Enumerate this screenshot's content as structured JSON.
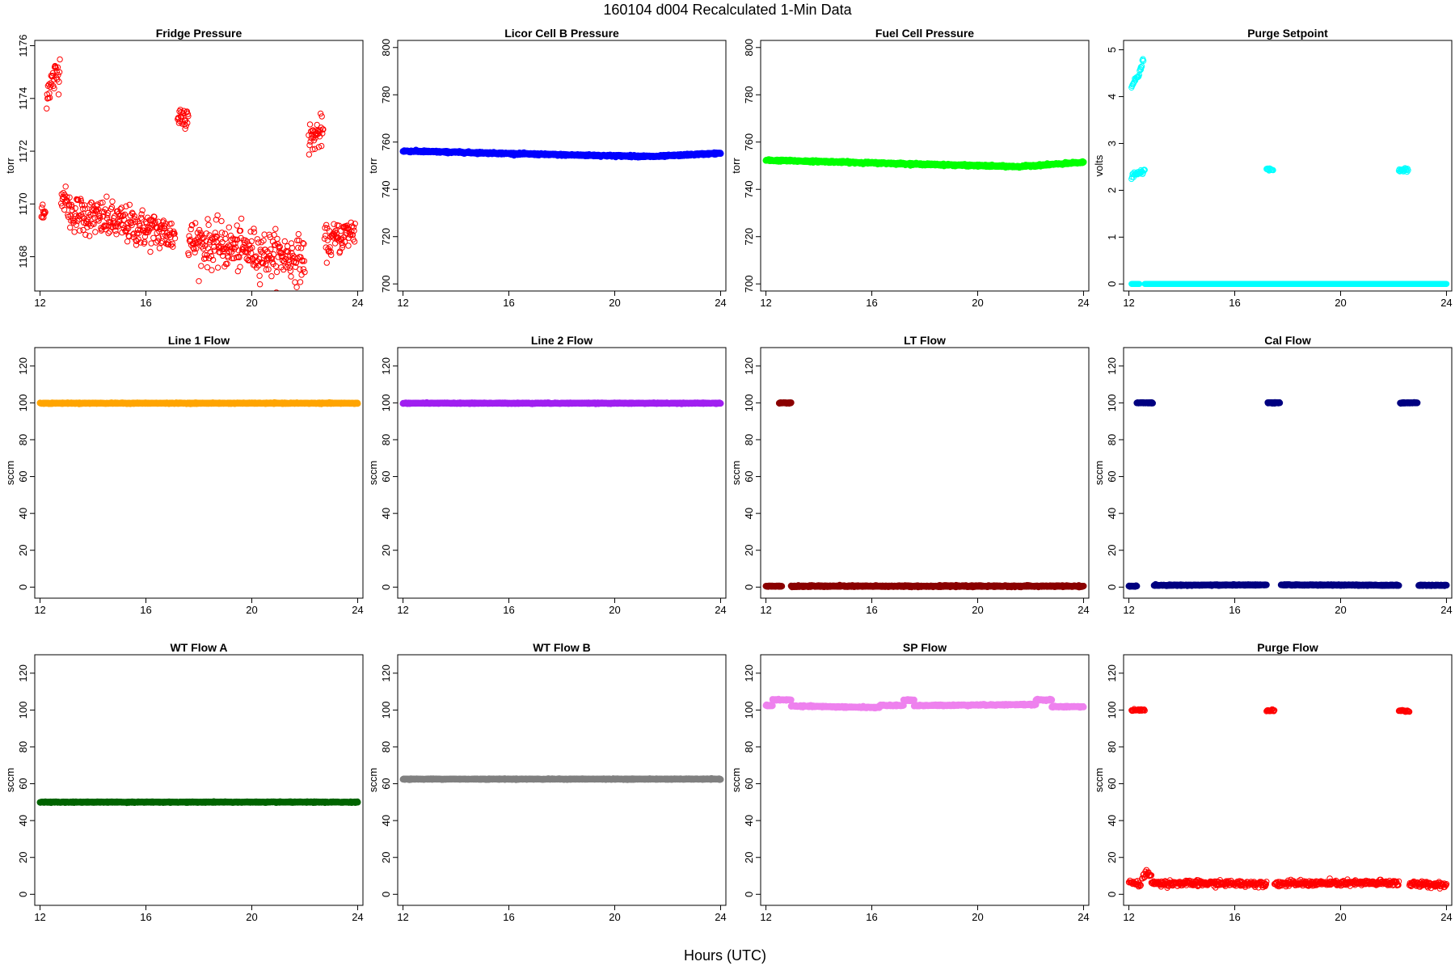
{
  "figure": {
    "title": "160104   d004   Recalculated 1-Min Data",
    "xlabel": "Hours (UTC)"
  },
  "chart_data": [
    {
      "type": "scatter",
      "title": "Fridge Pressure",
      "ylabel": "torr",
      "xlabel": "",
      "xlim": [
        11.8,
        24.2
      ],
      "ylim": [
        1166.7,
        1176.2
      ],
      "xticks": [
        12,
        16,
        20,
        24
      ],
      "yticks": [
        1168,
        1170,
        1172,
        1174,
        1176
      ],
      "marker": "open-circle",
      "color": "#ff0000",
      "segments": [
        {
          "x": [
            12.05,
            12.2
          ],
          "y": [
            1169.6,
            1169.6
          ],
          "noise": 0.45
        },
        {
          "x": [
            12.25,
            12.75
          ],
          "y": [
            1174.3,
            1175.1
          ],
          "noise": 0.55
        },
        {
          "x": [
            12.8,
            13.1
          ],
          "y": [
            1170.5,
            1169.8
          ],
          "noise": 0.45
        },
        {
          "x": [
            13.1,
            17.1
          ],
          "y": [
            1169.7,
            1168.8
          ],
          "noise": 0.6
        },
        {
          "x": [
            17.2,
            17.6
          ],
          "y": [
            1173.3,
            1173.4
          ],
          "noise": 0.4
        },
        {
          "x": [
            17.6,
            22.0
          ],
          "y": [
            1168.6,
            1167.9
          ],
          "noise": 0.7
        },
        {
          "x": [
            22.15,
            22.7
          ],
          "y": [
            1172.4,
            1172.8
          ],
          "noise": 0.5
        },
        {
          "x": [
            22.75,
            23.9
          ],
          "y": [
            1168.5,
            1169.0
          ],
          "noise": 0.5
        }
      ]
    },
    {
      "type": "scatter",
      "title": "Licor Cell B Pressure",
      "ylabel": "torr",
      "xlabel": "",
      "xlim": [
        11.8,
        24.2
      ],
      "ylim": [
        697,
        803
      ],
      "xticks": [
        12,
        16,
        20,
        24
      ],
      "yticks": [
        700,
        720,
        740,
        760,
        780,
        800
      ],
      "marker": "filled-dense",
      "color": "#0000ff",
      "segments": [
        {
          "x": [
            12.0,
            14.0
          ],
          "y": [
            756.2,
            755.7
          ],
          "noise": 0.3
        },
        {
          "x": [
            14.0,
            18.0
          ],
          "y": [
            755.7,
            754.6
          ],
          "noise": 0.3
        },
        {
          "x": [
            18.0,
            21.5
          ],
          "y": [
            754.6,
            753.9
          ],
          "noise": 0.3
        },
        {
          "x": [
            21.5,
            24.0
          ],
          "y": [
            753.9,
            755.3
          ],
          "noise": 0.3
        }
      ]
    },
    {
      "type": "scatter",
      "title": "Fuel Cell Pressure",
      "ylabel": "torr",
      "xlabel": "",
      "xlim": [
        11.8,
        24.2
      ],
      "ylim": [
        697,
        803
      ],
      "xticks": [
        12,
        16,
        20,
        24
      ],
      "yticks": [
        700,
        720,
        740,
        760,
        780,
        800
      ],
      "marker": "filled-dense",
      "color": "#00ff00",
      "segments": [
        {
          "x": [
            12.0,
            14.0
          ],
          "y": [
            752.3,
            751.8
          ],
          "noise": 0.3
        },
        {
          "x": [
            14.0,
            18.0
          ],
          "y": [
            751.8,
            750.6
          ],
          "noise": 0.3
        },
        {
          "x": [
            18.0,
            21.5
          ],
          "y": [
            750.6,
            749.6
          ],
          "noise": 0.3
        },
        {
          "x": [
            21.5,
            24.0
          ],
          "y": [
            749.6,
            751.4
          ],
          "noise": 0.3
        }
      ]
    },
    {
      "type": "scatter",
      "title": "Purge Setpoint",
      "ylabel": "volts",
      "xlabel": "",
      "xlim": [
        11.8,
        24.2
      ],
      "ylim": [
        -0.15,
        5.2
      ],
      "xticks": [
        12,
        16,
        20,
        24
      ],
      "yticks": [
        0,
        1,
        2,
        3,
        4,
        5
      ],
      "marker": "open-circle",
      "color": "#00ffff",
      "segments": [
        {
          "x": [
            12.1,
            12.4
          ],
          "y": [
            0,
            0
          ],
          "noise": 0,
          "sparse": true
        },
        {
          "x": [
            12.1,
            12.45
          ],
          "y": [
            4.2,
            4.55
          ],
          "noise": 0.05,
          "sparse": true
        },
        {
          "x": [
            12.45,
            12.55
          ],
          "y": [
            4.6,
            4.8
          ],
          "noise": 0.05,
          "sparse": true
        },
        {
          "x": [
            12.1,
            12.6
          ],
          "y": [
            2.3,
            2.42
          ],
          "noise": 0.04,
          "sparse": true
        },
        {
          "x": [
            12.6,
            24.0
          ],
          "y": [
            0,
            0
          ],
          "noise": 0
        },
        {
          "x": [
            17.2,
            17.45
          ],
          "y": [
            2.46,
            2.44
          ],
          "noise": 0.03,
          "sparse": true
        },
        {
          "x": [
            22.2,
            22.55
          ],
          "y": [
            2.42,
            2.44
          ],
          "noise": 0.04,
          "sparse": true
        }
      ]
    },
    {
      "type": "scatter",
      "title": "Line 1 Flow",
      "ylabel": "sccm",
      "xlabel": "",
      "xlim": [
        11.8,
        24.2
      ],
      "ylim": [
        -6,
        130
      ],
      "xticks": [
        12,
        16,
        20,
        24
      ],
      "yticks": [
        0,
        20,
        40,
        60,
        80,
        100,
        120
      ],
      "marker": "filled-dense",
      "color": "#ffa500",
      "segments": [
        {
          "x": [
            12.0,
            24.0
          ],
          "y": [
            99.8,
            99.8
          ],
          "noise": 0.2
        }
      ]
    },
    {
      "type": "scatter",
      "title": "Line 2 Flow",
      "ylabel": "sccm",
      "xlabel": "",
      "xlim": [
        11.8,
        24.2
      ],
      "ylim": [
        -6,
        130
      ],
      "xticks": [
        12,
        16,
        20,
        24
      ],
      "yticks": [
        0,
        20,
        40,
        60,
        80,
        100,
        120
      ],
      "marker": "filled-dense",
      "color": "#a020f0",
      "segments": [
        {
          "x": [
            12.0,
            24.0
          ],
          "y": [
            99.8,
            99.8
          ],
          "noise": 0.2
        }
      ]
    },
    {
      "type": "scatter",
      "title": "LT Flow",
      "ylabel": "sccm",
      "xlabel": "",
      "xlim": [
        11.8,
        24.2
      ],
      "ylim": [
        -6,
        130
      ],
      "xticks": [
        12,
        16,
        20,
        24
      ],
      "yticks": [
        0,
        20,
        40,
        60,
        80,
        100,
        120
      ],
      "marker": "filled-dense",
      "color": "#8b0000",
      "segments": [
        {
          "x": [
            12.0,
            12.6
          ],
          "y": [
            0.5,
            0.5
          ],
          "noise": 0.2
        },
        {
          "x": [
            12.5,
            12.95
          ],
          "y": [
            100,
            100
          ],
          "noise": 0.2
        },
        {
          "x": [
            12.95,
            24.0
          ],
          "y": [
            0.5,
            0.5
          ],
          "noise": 0.3
        }
      ]
    },
    {
      "type": "scatter",
      "title": "Cal Flow",
      "ylabel": "sccm",
      "xlabel": "",
      "xlim": [
        11.8,
        24.2
      ],
      "ylim": [
        -6,
        130
      ],
      "xticks": [
        12,
        16,
        20,
        24
      ],
      "yticks": [
        0,
        20,
        40,
        60,
        80,
        100,
        120
      ],
      "marker": "filled-dense",
      "color": "#000080",
      "segments": [
        {
          "x": [
            12.0,
            12.3
          ],
          "y": [
            0.5,
            0.5
          ],
          "noise": 0.2
        },
        {
          "x": [
            12.3,
            12.9
          ],
          "y": [
            100,
            100
          ],
          "noise": 0.2
        },
        {
          "x": [
            12.95,
            17.2
          ],
          "y": [
            1.0,
            1.2
          ],
          "noise": 0.2
        },
        {
          "x": [
            17.25,
            17.7
          ],
          "y": [
            100,
            100
          ],
          "noise": 0.2
        },
        {
          "x": [
            17.75,
            22.2
          ],
          "y": [
            1.2,
            1.0
          ],
          "noise": 0.2
        },
        {
          "x": [
            22.25,
            22.9
          ],
          "y": [
            100,
            100
          ],
          "noise": 0.2
        },
        {
          "x": [
            22.95,
            24.0
          ],
          "y": [
            1.0,
            1.0
          ],
          "noise": 0.2
        }
      ]
    },
    {
      "type": "scatter",
      "title": "WT Flow A",
      "ylabel": "sccm",
      "xlabel": "",
      "xlim": [
        11.8,
        24.2
      ],
      "ylim": [
        -6,
        130
      ],
      "xticks": [
        12,
        16,
        20,
        24
      ],
      "yticks": [
        0,
        20,
        40,
        60,
        80,
        100,
        120
      ],
      "marker": "filled-dense",
      "color": "#006400",
      "segments": [
        {
          "x": [
            12.0,
            24.0
          ],
          "y": [
            50,
            50
          ],
          "noise": 0.2
        }
      ]
    },
    {
      "type": "scatter",
      "title": "WT Flow B",
      "ylabel": "sccm",
      "xlabel": "",
      "xlim": [
        11.8,
        24.2
      ],
      "ylim": [
        -6,
        130
      ],
      "xticks": [
        12,
        16,
        20,
        24
      ],
      "yticks": [
        0,
        20,
        40,
        60,
        80,
        100,
        120
      ],
      "marker": "filled-dense",
      "color": "#808080",
      "segments": [
        {
          "x": [
            12.0,
            24.0
          ],
          "y": [
            62.5,
            62.5
          ],
          "noise": 0.2
        }
      ]
    },
    {
      "type": "scatter",
      "title": "SP Flow",
      "ylabel": "sccm",
      "xlabel": "",
      "xlim": [
        11.8,
        24.2
      ],
      "ylim": [
        -6,
        130
      ],
      "xticks": [
        12,
        16,
        20,
        24
      ],
      "yticks": [
        0,
        20,
        40,
        60,
        80,
        100,
        120
      ],
      "marker": "filled-dense",
      "color": "#ee82ee",
      "segments": [
        {
          "x": [
            12.0,
            12.25
          ],
          "y": [
            102.5,
            102.5
          ],
          "noise": 0.3
        },
        {
          "x": [
            12.25,
            12.95
          ],
          "y": [
            105.5,
            105.5
          ],
          "noise": 0.3
        },
        {
          "x": [
            12.95,
            16.3
          ],
          "y": [
            102.2,
            101.3
          ],
          "noise": 0.3
        },
        {
          "x": [
            16.3,
            17.2
          ],
          "y": [
            102.5,
            102.5
          ],
          "noise": 0.3
        },
        {
          "x": [
            17.2,
            17.6
          ],
          "y": [
            105.3,
            105.3
          ],
          "noise": 0.3
        },
        {
          "x": [
            17.6,
            22.2
          ],
          "y": [
            102.4,
            103.0
          ],
          "noise": 0.3
        },
        {
          "x": [
            22.2,
            22.8
          ],
          "y": [
            105.5,
            105.5
          ],
          "noise": 0.3
        },
        {
          "x": [
            22.8,
            24.0
          ],
          "y": [
            101.8,
            101.8
          ],
          "noise": 0.3
        }
      ]
    },
    {
      "type": "scatter",
      "title": "Purge Flow",
      "ylabel": "sccm",
      "xlabel": "",
      "xlim": [
        11.8,
        24.2
      ],
      "ylim": [
        -6,
        130
      ],
      "xticks": [
        12,
        16,
        20,
        24
      ],
      "yticks": [
        0,
        20,
        40,
        60,
        80,
        100,
        120
      ],
      "marker": "open-circle",
      "color": "#ff0000",
      "segments": [
        {
          "x": [
            12.0,
            12.45
          ],
          "y": [
            6.5,
            5.0
          ],
          "noise": 1.2,
          "sparse": true
        },
        {
          "x": [
            12.1,
            12.6
          ],
          "y": [
            100,
            100
          ],
          "noise": 0.4,
          "sparse": true
        },
        {
          "x": [
            12.5,
            12.85
          ],
          "y": [
            9.5,
            12.0
          ],
          "noise": 2.0,
          "sparse": true
        },
        {
          "x": [
            12.85,
            17.2
          ],
          "y": [
            6.0,
            5.8
          ],
          "noise": 1.3
        },
        {
          "x": [
            17.2,
            17.5
          ],
          "y": [
            99.8,
            99.8
          ],
          "noise": 0.4,
          "sparse": true
        },
        {
          "x": [
            17.5,
            22.2
          ],
          "y": [
            5.8,
            6.2
          ],
          "noise": 1.3
        },
        {
          "x": [
            22.2,
            22.6
          ],
          "y": [
            99.8,
            99.3
          ],
          "noise": 0.5,
          "sparse": true
        },
        {
          "x": [
            22.6,
            24.0
          ],
          "y": [
            5.5,
            5.2
          ],
          "noise": 1.3
        }
      ]
    }
  ]
}
